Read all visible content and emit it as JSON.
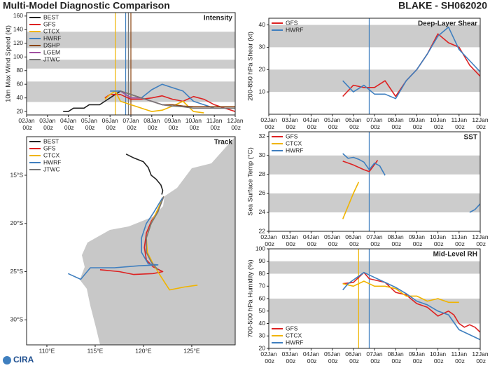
{
  "header": {
    "title": "Multi-Model Diagnostic Comparison",
    "storm": "BLAKE - SH062020"
  },
  "logo": "CIRA",
  "chart_data": [
    {
      "type": "line",
      "title": "Intensity",
      "ylabel": "10m Max Wind Speed (kt)",
      "legend": "upper left",
      "xlim": [
        2,
        12
      ],
      "ylim": [
        15,
        165
      ],
      "xticks": [
        {
          "value": 2,
          "label": "02Jan 00z"
        },
        {
          "value": 3,
          "label": "03Jan 00z"
        },
        {
          "value": 4,
          "label": "04Jan 00z"
        },
        {
          "value": 5,
          "label": "05Jan 00z"
        },
        {
          "value": 6,
          "label": "06Jan 00z"
        },
        {
          "value": 7,
          "label": "07Jan 00z"
        },
        {
          "value": 8,
          "label": "08Jan 00z"
        },
        {
          "value": 9,
          "label": "09Jan 00z"
        },
        {
          "value": 10,
          "label": "10Jan 00z"
        },
        {
          "value": 11,
          "label": "11Jan 00z"
        },
        {
          "value": 12,
          "label": "12Jan 00z"
        }
      ],
      "yticks": [
        20,
        40,
        60,
        80,
        100,
        120,
        140,
        160
      ],
      "bands": [
        [
          34,
          64
        ],
        [
          83,
          96
        ],
        [
          113,
          137
        ]
      ],
      "vlines": [
        {
          "x": 6.25,
          "color": "#f0b400"
        },
        {
          "x": 6.75,
          "color": "#3f7fbf"
        },
        {
          "x": 6.88,
          "color": "#777777"
        },
        {
          "x": 7.0,
          "color": "#8b4513"
        }
      ],
      "series": [
        {
          "name": "BEST",
          "color": "#222222",
          "x": [
            3.75,
            4,
            4.25,
            4.5,
            4.75,
            5,
            5.25,
            5.5,
            5.75,
            6,
            6.25,
            6.5
          ],
          "values": [
            20,
            20,
            25,
            25,
            25,
            30,
            30,
            30,
            35,
            40,
            45,
            50
          ]
        },
        {
          "name": "GFS",
          "color": "#dd2222",
          "x": [
            5.75,
            6,
            6.5,
            7,
            7.5,
            8,
            8.5,
            9,
            9.5,
            10,
            10.5,
            11,
            11.5,
            12
          ],
          "values": [
            40,
            45,
            45,
            38,
            38,
            40,
            43,
            38,
            35,
            42,
            38,
            30,
            25,
            20
          ]
        },
        {
          "name": "CTCX",
          "color": "#f0b400",
          "x": [
            5.75,
            6,
            6.25,
            6.5,
            7,
            7.5,
            8,
            8.5,
            9,
            9.5,
            10,
            10.5
          ],
          "values": [
            38,
            45,
            50,
            35,
            30,
            25,
            20,
            22,
            28,
            35,
            20,
            18
          ]
        },
        {
          "name": "HWRF",
          "color": "#3f7fbf",
          "x": [
            6,
            6.5,
            7,
            7.5,
            8,
            8.5,
            9,
            9.5,
            10,
            10.5,
            11,
            11.5,
            12
          ],
          "values": [
            50,
            50,
            40,
            40,
            52,
            60,
            55,
            50,
            35,
            30,
            25,
            25,
            25
          ]
        },
        {
          "name": "DSHP",
          "color": "#8b4513",
          "x": [
            6.5,
            7,
            7.5,
            8,
            8.5,
            9,
            9.5,
            10,
            10.5,
            11,
            11.5,
            12
          ],
          "values": [
            50,
            45,
            40,
            35,
            30,
            30,
            28,
            27,
            27,
            27,
            27,
            27
          ]
        },
        {
          "name": "LGEM",
          "color": "#a050a0",
          "x": [
            6.5,
            7,
            7.5,
            8,
            8.5,
            9
          ],
          "values": [
            50,
            40,
            40,
            35,
            30,
            28
          ]
        },
        {
          "name": "JTWC",
          "color": "#777777",
          "x": [
            6.5,
            7,
            7.5,
            8,
            8.5,
            9,
            9.5,
            10,
            11,
            12
          ],
          "values": [
            50,
            45,
            40,
            35,
            30,
            28,
            27,
            25,
            25,
            25
          ]
        }
      ]
    },
    {
      "type": "line",
      "title": "Deep-Layer Shear",
      "ylabel": "200-850 hPa Shear (kt)",
      "legend": "upper left",
      "xlim": [
        2,
        12
      ],
      "ylim": [
        0,
        43
      ],
      "xticks": [
        {
          "value": 2,
          "label": "02Jan 00z"
        },
        {
          "value": 3,
          "label": "03Jan 00z"
        },
        {
          "value": 4,
          "label": "04Jan 00z"
        },
        {
          "value": 5,
          "label": "05Jan 00z"
        },
        {
          "value": 6,
          "label": "06Jan 00z"
        },
        {
          "value": 7,
          "label": "07Jan 00z"
        },
        {
          "value": 8,
          "label": "08Jan 00z"
        },
        {
          "value": 9,
          "label": "09Jan 00z"
        },
        {
          "value": 10,
          "label": "10Jan 00z"
        },
        {
          "value": 11,
          "label": "11Jan 00z"
        },
        {
          "value": 12,
          "label": "12Jan 00z"
        }
      ],
      "yticks": [
        10,
        20,
        30,
        40
      ],
      "bands": [
        [
          10,
          20
        ],
        [
          30,
          40
        ]
      ],
      "vlines": [
        {
          "x": 6.75,
          "color": "#3f7fbf"
        }
      ],
      "series": [
        {
          "name": "GFS",
          "color": "#dd2222",
          "x": [
            5.5,
            6,
            6.5,
            7,
            7.5,
            8,
            8.5,
            9,
            9.5,
            10,
            10.5,
            11,
            11.5,
            12
          ],
          "values": [
            8,
            13,
            12,
            12,
            15,
            8,
            15,
            20,
            27,
            36,
            32,
            30,
            22,
            17
          ]
        },
        {
          "name": "HWRF",
          "color": "#3f7fbf",
          "x": [
            5.5,
            6,
            6.5,
            7,
            7.5,
            8,
            8.5,
            9,
            9.5,
            10,
            10.5,
            11,
            11.5,
            12
          ],
          "values": [
            15,
            10,
            13,
            9,
            9,
            7,
            15,
            20,
            27,
            35,
            39,
            29,
            24,
            19
          ]
        }
      ]
    },
    {
      "type": "line",
      "title": "SST",
      "ylabel": "Sea Surface Temp (°C)",
      "legend": "upper left",
      "xlim": [
        2,
        12
      ],
      "ylim": [
        22,
        32.5
      ],
      "xticks": [
        {
          "value": 2,
          "label": "02Jan 00z"
        },
        {
          "value": 3,
          "label": "03Jan 00z"
        },
        {
          "value": 4,
          "label": "04Jan 00z"
        },
        {
          "value": 5,
          "label": "05Jan 00z"
        },
        {
          "value": 6,
          "label": "06Jan 00z"
        },
        {
          "value": 7,
          "label": "07Jan 00z"
        },
        {
          "value": 8,
          "label": "08Jan 00z"
        },
        {
          "value": 9,
          "label": "09Jan 00z"
        },
        {
          "value": 10,
          "label": "10Jan 00z"
        },
        {
          "value": 11,
          "label": "11Jan 00z"
        },
        {
          "value": 12,
          "label": "12Jan 00z"
        }
      ],
      "yticks": [
        22,
        24,
        26,
        28,
        30,
        32
      ],
      "bands": [
        [
          24,
          26
        ],
        [
          28,
          30
        ]
      ],
      "vlines": [
        {
          "x": 6.75,
          "color": "#3f7fbf"
        }
      ],
      "series": [
        {
          "name": "GFS",
          "color": "#dd2222",
          "x": [
            5.5,
            6,
            6.5,
            6.75,
            7.15
          ],
          "values": [
            29.4,
            29.0,
            28.5,
            28.3,
            29.5
          ]
        },
        {
          "name": "CTCX",
          "color": "#f0b400",
          "x": [
            5.5,
            6,
            6.25
          ],
          "values": [
            23.3,
            26.0,
            27.2
          ]
        },
        {
          "name": "HWRF",
          "color": "#3f7fbf",
          "x": [
            5.5,
            5.75,
            6,
            6.25,
            6.5,
            6.75,
            7,
            7.25,
            7.5,
            9,
            11.5,
            11.75,
            12
          ],
          "values": [
            30.2,
            29.7,
            29.8,
            29.6,
            29.3,
            28.5,
            29.2,
            28.9,
            27.9,
            null,
            24.0,
            24.3,
            24.9
          ]
        }
      ]
    },
    {
      "type": "line",
      "title": "Mid-Level RH",
      "ylabel": "700-500 hPa Humidity (%)",
      "legend": "lower left",
      "xlim": [
        2,
        12
      ],
      "ylim": [
        20,
        100
      ],
      "xticks": [
        {
          "value": 2,
          "label": "02Jan 00z"
        },
        {
          "value": 3,
          "label": "03Jan 00z"
        },
        {
          "value": 4,
          "label": "04Jan 00z"
        },
        {
          "value": 5,
          "label": "05Jan 00z"
        },
        {
          "value": 6,
          "label": "06Jan 00z"
        },
        {
          "value": 7,
          "label": "07Jan 00z"
        },
        {
          "value": 8,
          "label": "08Jan 00z"
        },
        {
          "value": 9,
          "label": "09Jan 00z"
        },
        {
          "value": 10,
          "label": "10Jan 00z"
        },
        {
          "value": 11,
          "label": "11Jan 00z"
        },
        {
          "value": 12,
          "label": "12Jan 00z"
        }
      ],
      "yticks": [
        20,
        30,
        40,
        50,
        60,
        70,
        80,
        90,
        100
      ],
      "bands": [
        [
          40,
          60
        ],
        [
          80,
          90
        ]
      ],
      "vlines": [
        {
          "x": 6.25,
          "color": "#f0b400"
        },
        {
          "x": 6.75,
          "color": "#3f7fbf"
        }
      ],
      "series": [
        {
          "name": "GFS",
          "color": "#dd2222",
          "x": [
            5.5,
            6,
            6.5,
            6.75,
            7,
            7.5,
            8,
            8.5,
            9,
            9.5,
            10,
            10.25,
            10.5,
            10.75,
            11,
            11.25,
            11.5,
            11.75,
            12
          ],
          "values": [
            72,
            73,
            81,
            76,
            75,
            73,
            65,
            63,
            56,
            53,
            46,
            48,
            50,
            47,
            40,
            37,
            39,
            37,
            33
          ]
        },
        {
          "name": "CTCX",
          "color": "#f0b400",
          "x": [
            5.5,
            6,
            6.5,
            7,
            7.5,
            8,
            8.5,
            9,
            9.5,
            10,
            10.5,
            11
          ],
          "values": [
            72,
            70,
            74,
            70,
            70,
            68,
            62,
            62,
            58,
            60,
            57,
            57
          ]
        },
        {
          "name": "HWRF",
          "color": "#3f7fbf",
          "x": [
            5.5,
            5.75,
            6,
            6.5,
            7,
            7.5,
            8,
            8.5,
            9,
            9.5,
            10,
            10.5,
            11,
            11.5,
            12
          ],
          "values": [
            67,
            72,
            75,
            81,
            77,
            73,
            69,
            64,
            58,
            55,
            50,
            47,
            35,
            31,
            27
          ]
        }
      ]
    },
    {
      "type": "track",
      "title": "Track",
      "legend": "upper left",
      "xlim": [
        107.9,
        129.5
      ],
      "ylim": [
        -32.6,
        -11
      ],
      "xticks": [
        {
          "value": 110,
          "label": "110°E"
        },
        {
          "value": 115,
          "label": "115°E"
        },
        {
          "value": 120,
          "label": "120°E"
        },
        {
          "value": 125,
          "label": "125°E"
        }
      ],
      "yticks": [
        {
          "value": -15,
          "label": "15°S"
        },
        {
          "value": -20,
          "label": "20°S"
        },
        {
          "value": -25,
          "label": "25°S"
        },
        {
          "value": -30,
          "label": "30°S"
        }
      ],
      "series": [
        {
          "name": "BEST",
          "color": "#222222",
          "x": [
            118.2,
            119.0,
            120.0,
            120.5,
            120.8,
            121.3,
            121.8,
            122.0,
            121.9
          ],
          "values": [
            -12.8,
            -13.2,
            -13.6,
            -14.2,
            -15.0,
            -15.4,
            -16.0,
            -16.6,
            -17.0
          ]
        },
        {
          "name": "GFS",
          "color": "#dd2222",
          "x": [
            122.1,
            121.6,
            120.8,
            120.3,
            120.1,
            120.3,
            121.0,
            122.0,
            121.0,
            119.0,
            117.5,
            115.5
          ],
          "values": [
            -17.2,
            -18.5,
            -19.8,
            -21.0,
            -22.5,
            -23.8,
            -24.5,
            -25.0,
            -25.2,
            -25.3,
            -25.0,
            -24.8
          ]
        },
        {
          "name": "CTCX",
          "color": "#f0b400",
          "x": [
            122.1,
            121.5,
            120.8,
            120.3,
            120.4,
            121.0,
            121.8,
            122.7,
            124.2,
            125.6
          ],
          "values": [
            -17.2,
            -18.5,
            -20.0,
            -21.5,
            -23.0,
            -24.2,
            -25.5,
            -26.9,
            -26.6,
            -26.4
          ]
        },
        {
          "name": "HWRF",
          "color": "#3f7fbf",
          "x": [
            122.0,
            121.1,
            120.3,
            119.8,
            119.8,
            120.5,
            121.5,
            119.5,
            117.0,
            114.5,
            113.5,
            112.2
          ],
          "values": [
            -17.3,
            -18.8,
            -20.0,
            -21.5,
            -23.0,
            -24.2,
            -24.3,
            -24.4,
            -24.6,
            -24.6,
            -25.8,
            -25.2
          ]
        },
        {
          "name": "JTWC",
          "color": "#777777",
          "x": [
            122.1,
            121.5,
            120.8,
            120.3,
            120.3,
            120.8,
            121.5
          ],
          "values": [
            -17.2,
            -18.8,
            -20.0,
            -21.5,
            -23.0,
            -24.0,
            -24.8
          ]
        }
      ]
    }
  ]
}
